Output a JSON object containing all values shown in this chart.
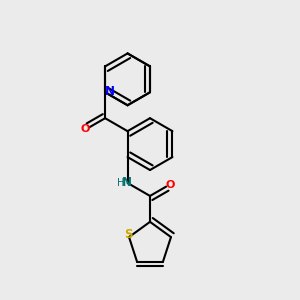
{
  "bg": "#ebebeb",
  "bc": "#000000",
  "N_color": "#0000ff",
  "O_color": "#ff0000",
  "S_color": "#ccaa00",
  "NH_color": "#007070",
  "lw": 1.5,
  "dbo": 0.018,
  "figsize": [
    3.0,
    3.0
  ],
  "dpi": 100,
  "xlim": [
    0.0,
    1.0
  ],
  "ylim": [
    0.0,
    1.0
  ],
  "BL": 0.088
}
